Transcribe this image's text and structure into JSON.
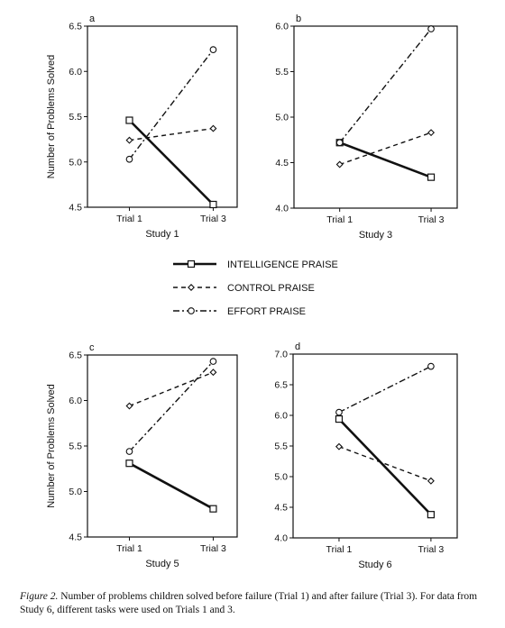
{
  "legend": [
    {
      "label": "INTELLIGENCE PRAISE",
      "style": "solid",
      "marker": "square"
    },
    {
      "label": "CONTROL PRAISE",
      "style": "dashed",
      "marker": "diamond"
    },
    {
      "label": "EFFORT PRAISE",
      "style": "dashdot",
      "marker": "circle"
    }
  ],
  "caption": {
    "label": "Figure 2.",
    "text": "Number of problems children solved before failure (Trial 1) and after failure (Trial 3). For data from Study 6, different tasks were used on Trials 1 and 3."
  },
  "chart_data": [
    {
      "type": "line",
      "panel": "a",
      "title": "Study 1",
      "ylabel": "Number of Problems Solved",
      "categories": [
        "Trial 1",
        "Trial 3"
      ],
      "ylim": [
        4.5,
        6.5
      ],
      "yticks": [
        "4.5",
        "5.0",
        "5.5",
        "6.0",
        "6.5"
      ],
      "series": [
        {
          "name": "INTELLIGENCE PRAISE",
          "values": [
            5.46,
            4.53
          ]
        },
        {
          "name": "CONTROL PRAISE",
          "values": [
            5.24,
            5.37
          ]
        },
        {
          "name": "EFFORT PRAISE",
          "values": [
            5.03,
            6.24
          ]
        }
      ]
    },
    {
      "type": "line",
      "panel": "b",
      "title": "Study 3",
      "ylabel": "",
      "categories": [
        "Trial 1",
        "Trial 3"
      ],
      "ylim": [
        4.0,
        6.0
      ],
      "yticks": [
        "4.0",
        "4.5",
        "5.0",
        "5.5",
        "6.0"
      ],
      "series": [
        {
          "name": "INTELLIGENCE PRAISE",
          "values": [
            4.72,
            4.34
          ]
        },
        {
          "name": "CONTROL PRAISE",
          "values": [
            4.48,
            4.83
          ]
        },
        {
          "name": "EFFORT PRAISE",
          "values": [
            4.72,
            5.97
          ]
        }
      ]
    },
    {
      "type": "line",
      "panel": "c",
      "title": "Study 5",
      "ylabel": "Number of Problems Solved",
      "categories": [
        "Trial 1",
        "Trial 3"
      ],
      "ylim": [
        4.5,
        6.5
      ],
      "yticks": [
        "4.5",
        "5.0",
        "5.5",
        "6.0",
        "6.5"
      ],
      "series": [
        {
          "name": "INTELLIGENCE PRAISE",
          "values": [
            5.31,
            4.81
          ]
        },
        {
          "name": "CONTROL PRAISE",
          "values": [
            5.94,
            6.31
          ]
        },
        {
          "name": "EFFORT PRAISE",
          "values": [
            5.44,
            6.43
          ]
        }
      ]
    },
    {
      "type": "line",
      "panel": "d",
      "title": "Study 6",
      "ylabel": "",
      "categories": [
        "Trial 1",
        "Trial 3"
      ],
      "ylim": [
        4.0,
        7.0
      ],
      "yticks": [
        "4.0",
        "4.5",
        "5.0",
        "5.5",
        "6.0",
        "6.5",
        "7.0"
      ],
      "series": [
        {
          "name": "INTELLIGENCE PRAISE",
          "values": [
            5.94,
            4.38
          ]
        },
        {
          "name": "CONTROL PRAISE",
          "values": [
            5.49,
            4.93
          ]
        },
        {
          "name": "EFFORT PRAISE",
          "values": [
            6.05,
            6.8
          ]
        }
      ]
    }
  ]
}
